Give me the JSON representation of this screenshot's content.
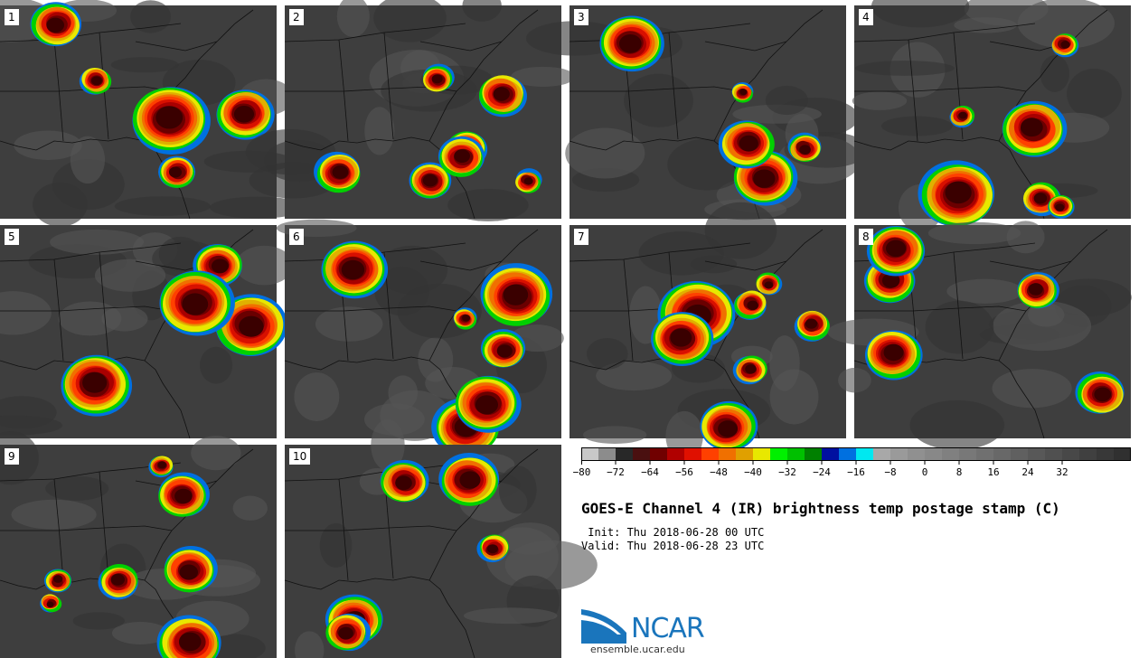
{
  "panels": [
    {
      "number": "1"
    },
    {
      "number": "2"
    },
    {
      "number": "3"
    },
    {
      "number": "4"
    },
    {
      "number": "5"
    },
    {
      "number": "6"
    },
    {
      "number": "7"
    },
    {
      "number": "8"
    },
    {
      "number": "9"
    },
    {
      "number": "10"
    }
  ],
  "colorbar": {
    "colors": [
      "#c8c8c8",
      "#8c8c8c",
      "#282828",
      "#4a1010",
      "#700000",
      "#b00000",
      "#e01000",
      "#ff4000",
      "#f07000",
      "#e0a000",
      "#e8e800",
      "#00f000",
      "#00c000",
      "#008000",
      "#0010a0",
      "#0070e0",
      "#00e8f0",
      "#a8a8a8",
      "#9a9a9a",
      "#909090",
      "#888888",
      "#808080",
      "#787878",
      "#707070",
      "#686868",
      "#606060",
      "#585858",
      "#505050",
      "#484848",
      "#404040",
      "#383838",
      "#303030"
    ],
    "tick_labels": [
      "−80",
      "−72",
      "−64",
      "−56",
      "−48",
      "−40",
      "−32",
      "−24",
      "−16",
      "−8",
      "0",
      "8",
      "16",
      "24",
      "32"
    ]
  },
  "title": "GOES-E Channel 4 (IR) brightness temp postage stamp (C)",
  "init": " Init: Thu 2018-06-28 00 UTC",
  "valid": "Valid: Thu 2018-06-28 23 UTC",
  "logo_text": "NCAR",
  "url": "ensemble.ucar.edu"
}
